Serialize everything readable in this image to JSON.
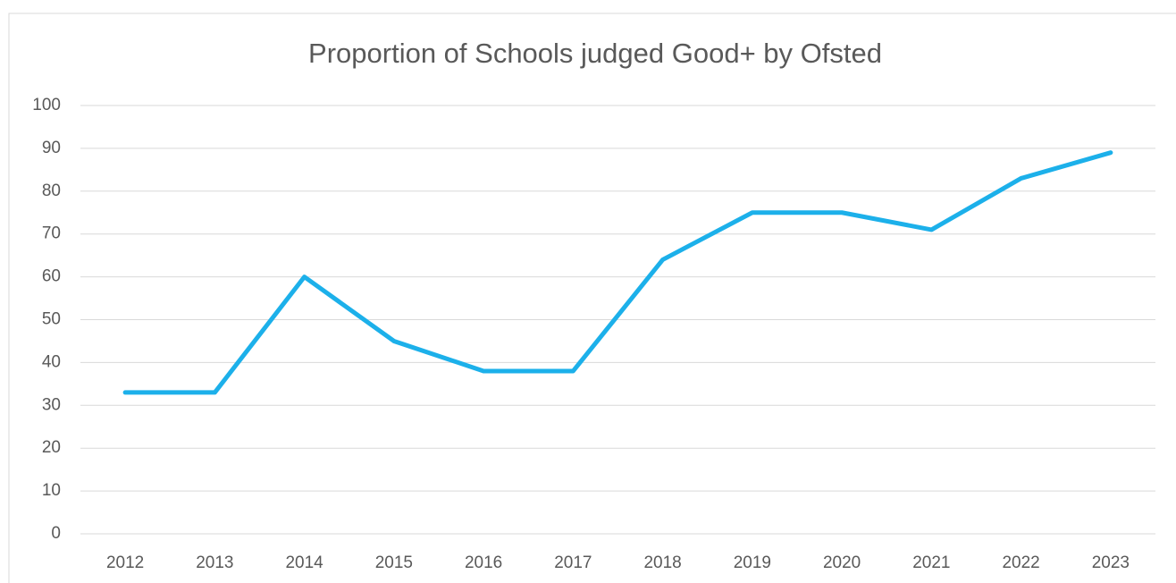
{
  "chart_data": {
    "type": "line",
    "title": "Proportion of Schools judged Good+ by Ofsted",
    "categories": [
      "2012",
      "2013",
      "2014",
      "2015",
      "2016",
      "2017",
      "2018",
      "2019",
      "2020",
      "2021",
      "2022",
      "2023"
    ],
    "series": [
      {
        "color": "#1cb0ea",
        "values": [
          33,
          33,
          60,
          45,
          38,
          38,
          64,
          75,
          75,
          71,
          83,
          89
        ]
      }
    ],
    "ylim": [
      0,
      100
    ],
    "yticks": [
      0,
      10,
      20,
      30,
      40,
      50,
      60,
      70,
      80,
      90,
      100
    ],
    "grid": true
  }
}
